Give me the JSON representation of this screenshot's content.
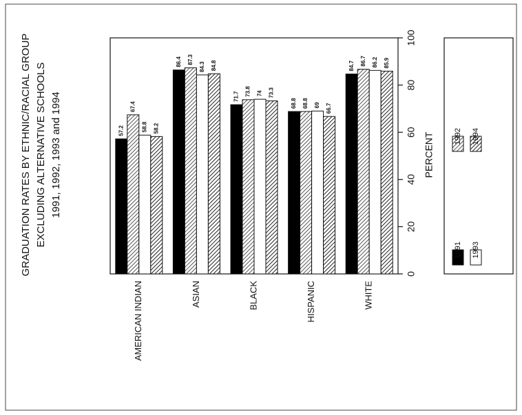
{
  "chart_data": {
    "type": "bar",
    "title": [
      "GRADUATION RATES BY ETHNIC/RACIAL GROUP",
      "EXCLUDING ALTERNATIVE SCHOOLS",
      "1991, 1992, 1993 and 1994"
    ],
    "y_label": "PERCENT",
    "categories": [
      "AMERICAN INDIAN",
      "ASIAN",
      "BLACK",
      "HISPANIC",
      "WHITE"
    ],
    "series": [
      {
        "name": "1991",
        "color": "#000000",
        "hatch": false,
        "values": [
          57.2,
          86.4,
          71.7,
          68.8,
          84.7
        ]
      },
      {
        "name": "1992",
        "color": "#555555",
        "hatch": true,
        "values": [
          67.4,
          87.3,
          73.8,
          68.8,
          86.7
        ]
      },
      {
        "name": "1993",
        "color": "#ffffff",
        "hatch": false,
        "values": [
          58.8,
          84.3,
          74.0,
          69.0,
          86.2
        ]
      },
      {
        "name": "1994",
        "color": "#222222",
        "hatch": true,
        "values": [
          58.2,
          84.8,
          73.3,
          66.7,
          85.9
        ]
      }
    ],
    "ylim": [
      0,
      100
    ],
    "yticks": [
      0,
      20,
      40,
      60,
      80,
      100
    ]
  }
}
